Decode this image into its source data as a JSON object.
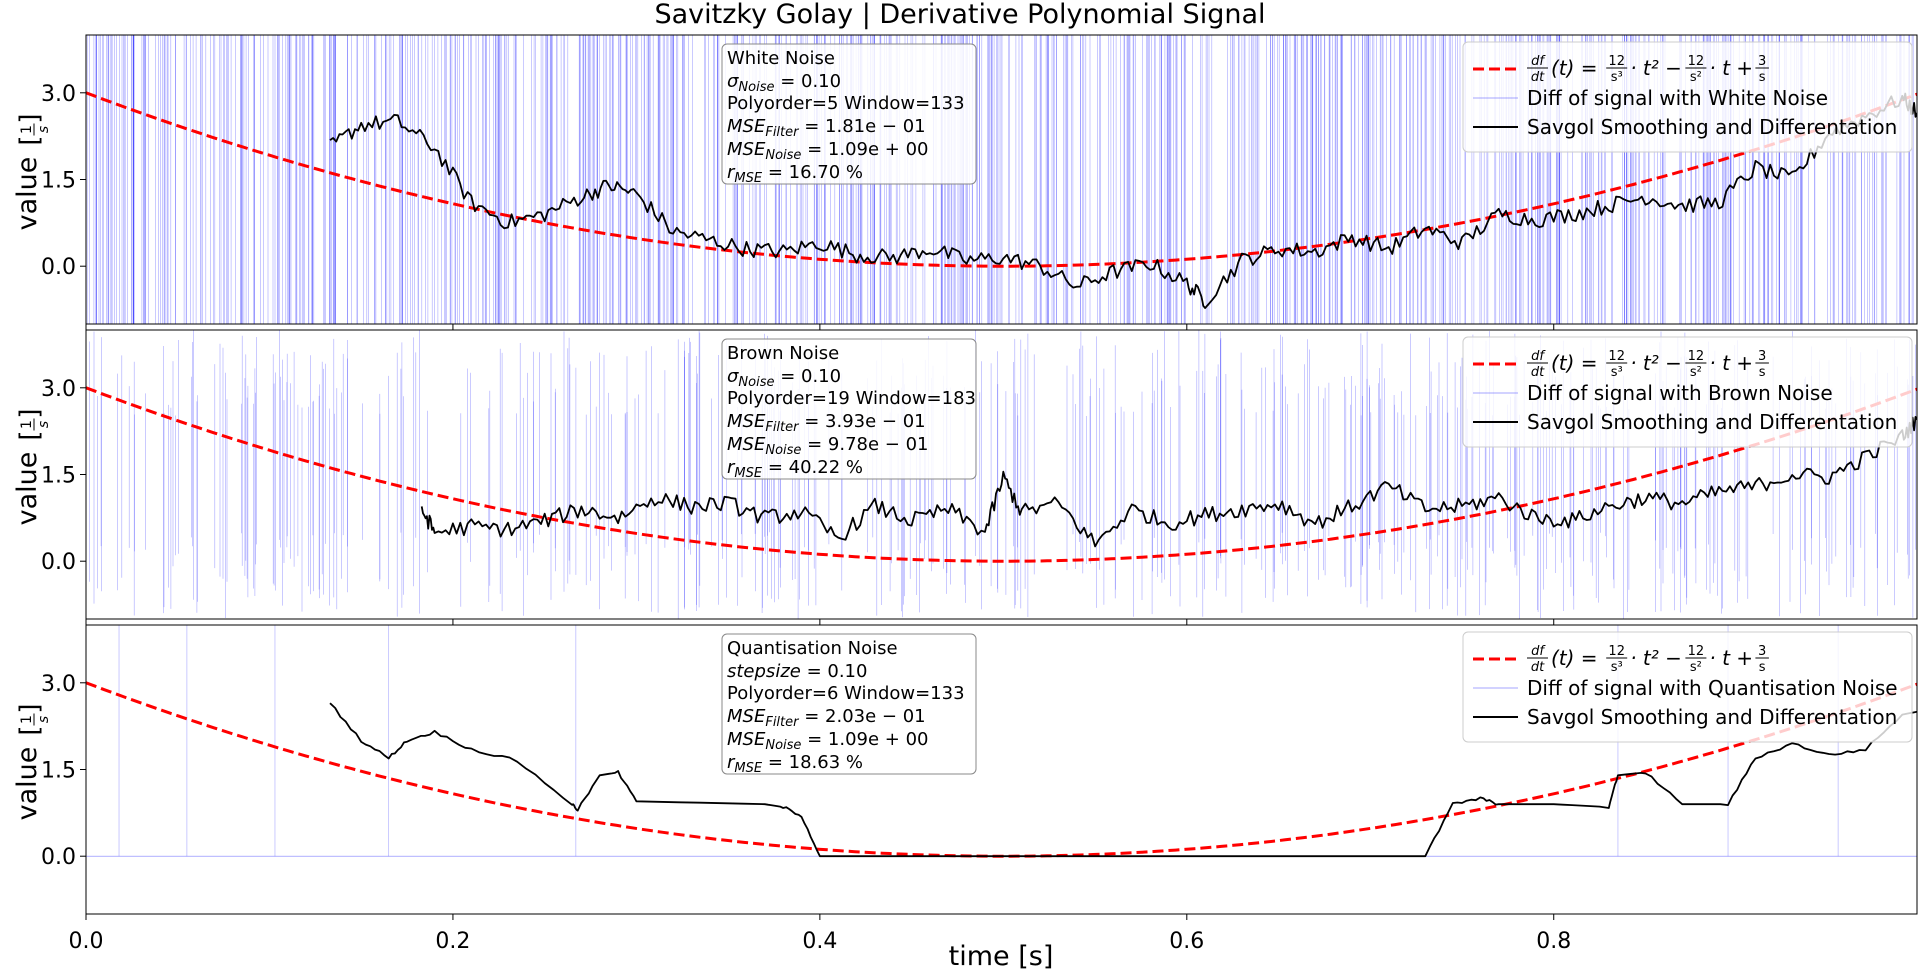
{
  "title": "Savitzky Golay | Derivative Polynomial Signal",
  "xlabel": "time [s]",
  "ylabel": "value",
  "ylabel_unit_num": "1",
  "ylabel_unit_den": "s",
  "x_ticks": [
    "0.0",
    "0.2",
    "0.4",
    "0.6",
    "0.8"
  ],
  "y_ticks": [
    "0.0",
    "1.5",
    "3.0"
  ],
  "colors": {
    "reference": "#ff0000",
    "noise": "#0000ff",
    "savgol": "#000000",
    "axes": "#000000",
    "box_edge": "#888888"
  },
  "legend_formula": {
    "lhs_num": "df",
    "lhs_den": "dt",
    "lhs_arg": "(t) = ",
    "c1_num": "12",
    "c1_den": "s³",
    "term1": "· t² −",
    "c2_num": "12",
    "c2_den": "s²",
    "term2": "· t +",
    "c3_num": "3",
    "c3_den": "s"
  },
  "legend_savgol": "Savgol Smoothing and Differentation",
  "panels": [
    {
      "legend_noise": "Diff of signal with White Noise",
      "box": {
        "name": "White Noise",
        "param_sym": "σ",
        "param_sub": "Noise",
        "param_val": " = 0.10",
        "poly_window": "Polyorder=5 Window=133",
        "mse_filter_sub": "Filter",
        "mse_filter_val": " = 1.81e − 01",
        "mse_noise_sub": "Noise",
        "mse_noise_val": " = 1.09e + 00",
        "r_sub": "MSE",
        "r_val": " = 16.70 %"
      }
    },
    {
      "legend_noise": "Diff of signal with Brown Noise",
      "box": {
        "name": "Brown Noise",
        "param_sym": "σ",
        "param_sub": "Noise",
        "param_val": " = 0.10",
        "poly_window": "Polyorder=19 Window=183",
        "mse_filter_sub": "Filter",
        "mse_filter_val": " = 3.93e − 01",
        "mse_noise_sub": "Noise",
        "mse_noise_val": " = 9.78e − 01",
        "r_sub": "MSE",
        "r_val": " = 40.22 %"
      }
    },
    {
      "legend_noise": "Diff of signal with Quantisation Noise",
      "box": {
        "name": "Quantisation Noise",
        "param_sym": "stepsize",
        "param_sub": "",
        "param_val": " = 0.10",
        "poly_window": "Polyorder=6 Window=133",
        "mse_filter_sub": "Filter",
        "mse_filter_val": " = 2.03e − 01",
        "mse_noise_sub": "Noise",
        "mse_noise_val": " = 1.09e + 00",
        "r_sub": "MSE",
        "r_val": " = 18.63 %"
      }
    }
  ],
  "chart_data": [
    {
      "type": "line",
      "xlim": [
        0.0,
        0.998
      ],
      "ylim": [
        -1.0,
        4.0
      ],
      "series": [
        {
          "name": "df/dt(t) = 12/s³·t² − 12/s²·t + 3/s",
          "style": "dashed",
          "x": [
            0.0,
            0.1,
            0.2,
            0.3,
            0.4,
            0.5,
            0.6,
            0.7,
            0.8,
            0.9,
            0.998
          ],
          "values": [
            3.0,
            1.92,
            1.08,
            0.48,
            0.12,
            0.0,
            0.12,
            0.48,
            1.08,
            1.92,
            2.98
          ]
        },
        {
          "name": "Diff of signal with White Noise",
          "style": "dense-vertical-noise"
        },
        {
          "name": "Savgol Smoothing and Differentation",
          "x": [
            0.133,
            0.15,
            0.17,
            0.19,
            0.21,
            0.23,
            0.25,
            0.27,
            0.285,
            0.3,
            0.32,
            0.34,
            0.36,
            0.38,
            0.4,
            0.42,
            0.44,
            0.46,
            0.48,
            0.5,
            0.52,
            0.54,
            0.56,
            0.58,
            0.6,
            0.61,
            0.63,
            0.65,
            0.67,
            0.69,
            0.71,
            0.73,
            0.75,
            0.77,
            0.79,
            0.81,
            0.83,
            0.85,
            0.87,
            0.89,
            0.91,
            0.93,
            0.95,
            0.97,
            0.99,
            0.998
          ],
          "values": [
            2.05,
            2.45,
            2.5,
            2.05,
            1.1,
            0.75,
            0.9,
            1.2,
            1.4,
            1.25,
            0.6,
            0.45,
            0.3,
            0.25,
            0.4,
            0.2,
            0.15,
            0.3,
            0.1,
            0.15,
            0.0,
            -0.35,
            -0.1,
            0.05,
            -0.3,
            -0.6,
            0.1,
            0.3,
            0.25,
            0.5,
            0.3,
            0.65,
            0.4,
            0.9,
            0.8,
            0.9,
            1.05,
            1.2,
            1.05,
            1.1,
            1.7,
            1.5,
            2.3,
            2.6,
            2.9,
            2.65
          ]
        }
      ]
    },
    {
      "type": "line",
      "xlim": [
        0.0,
        0.998
      ],
      "ylim": [
        -1.0,
        4.0
      ],
      "series": [
        {
          "name": "df/dt(t) = 12/s³·t² − 12/s²·t + 3/s",
          "style": "dashed",
          "x": [
            0.0,
            0.1,
            0.2,
            0.3,
            0.4,
            0.5,
            0.6,
            0.7,
            0.8,
            0.9,
            0.998
          ],
          "values": [
            3.0,
            1.92,
            1.08,
            0.48,
            0.12,
            0.0,
            0.12,
            0.48,
            1.08,
            1.92,
            2.98
          ]
        },
        {
          "name": "Diff of signal with Brown Noise",
          "style": "sparse-vertical-noise"
        },
        {
          "name": "Savgol Smoothing and Differentation",
          "x": [
            0.183,
            0.19,
            0.21,
            0.23,
            0.25,
            0.27,
            0.29,
            0.31,
            0.33,
            0.35,
            0.37,
            0.39,
            0.41,
            0.43,
            0.45,
            0.47,
            0.49,
            0.5,
            0.51,
            0.53,
            0.55,
            0.57,
            0.59,
            0.61,
            0.63,
            0.65,
            0.67,
            0.69,
            0.71,
            0.73,
            0.75,
            0.77,
            0.79,
            0.81,
            0.83,
            0.85,
            0.87,
            0.89,
            0.91,
            0.93,
            0.95,
            0.97,
            0.99,
            0.998
          ],
          "values": [
            0.9,
            0.5,
            0.6,
            0.55,
            0.7,
            0.9,
            0.75,
            1.1,
            0.95,
            1.0,
            0.75,
            0.85,
            0.4,
            0.95,
            0.7,
            0.9,
            0.5,
            1.45,
            0.85,
            1.0,
            0.3,
            0.9,
            0.65,
            0.8,
            0.9,
            1.0,
            0.65,
            0.95,
            1.3,
            0.9,
            0.95,
            1.1,
            0.75,
            0.7,
            0.95,
            1.1,
            1.0,
            1.2,
            1.3,
            1.5,
            1.45,
            1.8,
            2.15,
            2.45
          ]
        }
      ]
    },
    {
      "type": "line",
      "xlim": [
        0.0,
        0.998
      ],
      "ylim": [
        -1.0,
        4.0
      ],
      "series": [
        {
          "name": "df/dt(t) = 12/s³·t² − 12/s²·t + 3/s",
          "style": "dashed",
          "x": [
            0.0,
            0.1,
            0.2,
            0.3,
            0.4,
            0.5,
            0.6,
            0.7,
            0.8,
            0.9,
            0.998
          ],
          "values": [
            3.0,
            1.92,
            1.08,
            0.48,
            0.12,
            0.0,
            0.12,
            0.48,
            1.08,
            1.92,
            2.98
          ]
        },
        {
          "name": "Diff of signal with Quantisation Noise",
          "style": "sparse-steps",
          "x": [
            0.018,
            0.055,
            0.103,
            0.165,
            0.267,
            0.4,
            0.55,
            0.73,
            0.835,
            0.895,
            0.955
          ],
          "values": [
            4.0,
            4.0,
            4.0,
            4.0,
            4.0,
            0.0,
            0.0,
            0.0,
            4.0,
            4.0,
            4.0
          ]
        },
        {
          "name": "Savgol Smoothing and Differentation",
          "x": [
            0.133,
            0.15,
            0.165,
            0.175,
            0.19,
            0.21,
            0.235,
            0.265,
            0.268,
            0.28,
            0.29,
            0.3,
            0.37,
            0.38,
            0.39,
            0.4,
            0.5,
            0.6,
            0.73,
            0.745,
            0.76,
            0.77,
            0.8,
            0.83,
            0.835,
            0.85,
            0.87,
            0.895,
            0.91,
            0.93,
            0.95,
            0.97,
            0.99,
            0.998
          ],
          "values": [
            2.65,
            2.0,
            1.7,
            2.0,
            2.15,
            1.85,
            1.65,
            0.9,
            0.8,
            1.4,
            1.45,
            0.95,
            0.9,
            0.85,
            0.7,
            0.0,
            0.0,
            0.0,
            0.0,
            0.9,
            1.0,
            0.9,
            0.9,
            0.85,
            1.4,
            1.45,
            0.9,
            0.9,
            1.7,
            1.95,
            1.75,
            1.85,
            2.45,
            2.5
          ]
        }
      ]
    }
  ]
}
